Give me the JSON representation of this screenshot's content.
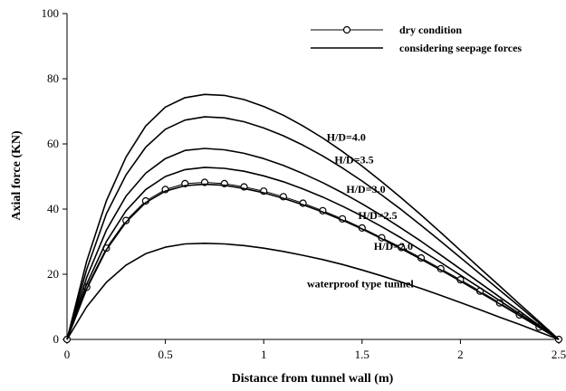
{
  "chart_data": {
    "type": "line",
    "xlabel": "Distance from tunnel wall (m)",
    "ylabel": "Axial force (KN)",
    "xlim": [
      0,
      2.5
    ],
    "ylim": [
      0,
      100
    ],
    "xticks": [
      0,
      0.5,
      1,
      1.5,
      2,
      2.5
    ],
    "xtick_labels": [
      "0",
      "0.5",
      "1",
      "1.5",
      "2",
      "2.5"
    ],
    "yticks": [
      0,
      20,
      40,
      60,
      80,
      100
    ],
    "ytick_labels": [
      "0",
      "20",
      "40",
      "60",
      "80",
      "100"
    ],
    "grid": false,
    "legend": {
      "position": "top-right",
      "entries": [
        {
          "label": "dry condition",
          "style": "line-with-circle-markers"
        },
        {
          "label": "considering seepage forces",
          "style": "line"
        }
      ]
    },
    "annotations": [
      {
        "text": "H/D=4.0",
        "x": 1.32,
        "y": 61
      },
      {
        "text": "H/D=3.5",
        "x": 1.36,
        "y": 54
      },
      {
        "text": "H/D=3.0",
        "x": 1.42,
        "y": 45
      },
      {
        "text": "H/D=2.5",
        "x": 1.48,
        "y": 37
      },
      {
        "text": "H/D=2.0",
        "x": 1.56,
        "y": 27.5
      },
      {
        "text": "waterproof type tunnel",
        "x": 1.22,
        "y": 16
      }
    ],
    "series": [
      {
        "label": "dry condition",
        "kind": "dry",
        "x": [
          0,
          0.1,
          0.2,
          0.3,
          0.4,
          0.5,
          0.6,
          0.7,
          0.8,
          0.9,
          1.0,
          1.1,
          1.2,
          1.3,
          1.4,
          1.5,
          1.6,
          1.7,
          1.8,
          1.9,
          2.0,
          2.1,
          2.2,
          2.3,
          2.4,
          2.5
        ],
        "y": [
          0,
          16,
          28,
          36.5,
          42.5,
          46,
          47.8,
          48.2,
          47.8,
          46.8,
          45.5,
          43.8,
          41.8,
          39.5,
          37,
          34.2,
          31.2,
          28.2,
          25,
          21.7,
          18.3,
          14.8,
          11.2,
          7.5,
          3.8,
          0
        ]
      },
      {
        "annotation": "H/D=2.0",
        "kind": "seepage",
        "x": [
          0,
          0.1,
          0.2,
          0.3,
          0.4,
          0.5,
          0.6,
          0.7,
          0.8,
          0.9,
          1.0,
          1.1,
          1.2,
          1.3,
          1.4,
          1.5,
          1.6,
          1.7,
          1.8,
          1.9,
          2.0,
          2.1,
          2.2,
          2.3,
          2.4,
          2.5
        ],
        "y": [
          0,
          15.5,
          27.5,
          36,
          42,
          45.5,
          47.2,
          47.6,
          47.3,
          46.3,
          45,
          43.3,
          41.3,
          39.1,
          36.6,
          33.9,
          30.9,
          27.8,
          24.6,
          21.3,
          17.9,
          14.4,
          10.9,
          7.3,
          3.7,
          0
        ]
      },
      {
        "annotation": "H/D=2.5",
        "kind": "seepage",
        "x": [
          0,
          0.1,
          0.2,
          0.3,
          0.4,
          0.5,
          0.6,
          0.7,
          0.8,
          0.9,
          1.0,
          1.1,
          1.2,
          1.3,
          1.4,
          1.5,
          1.6,
          1.7,
          1.8,
          1.9,
          2.0,
          2.1,
          2.2,
          2.3,
          2.4,
          2.5
        ],
        "y": [
          0,
          17,
          30,
          39.5,
          46,
          50,
          52.1,
          52.8,
          52.5,
          51.6,
          50.2,
          48.4,
          46.2,
          43.7,
          40.9,
          37.9,
          34.6,
          31.1,
          27.4,
          23.6,
          19.7,
          15.8,
          11.9,
          7.9,
          4.0,
          0
        ]
      },
      {
        "annotation": "H/D=3.0",
        "kind": "seepage",
        "x": [
          0,
          0.1,
          0.2,
          0.3,
          0.4,
          0.5,
          0.6,
          0.7,
          0.8,
          0.9,
          1.0,
          1.1,
          1.2,
          1.3,
          1.4,
          1.5,
          1.6,
          1.7,
          1.8,
          1.9,
          2.0,
          2.1,
          2.2,
          2.3,
          2.4,
          2.5
        ],
        "y": [
          0,
          19,
          33.5,
          44,
          51,
          55.5,
          58,
          58.6,
          58.2,
          57.1,
          55.5,
          53.4,
          50.9,
          48.1,
          45,
          41.6,
          38,
          34.1,
          30.1,
          25.9,
          21.6,
          17.3,
          13,
          8.7,
          4.3,
          0
        ]
      },
      {
        "annotation": "H/D=3.5",
        "kind": "seepage",
        "x": [
          0,
          0.1,
          0.2,
          0.3,
          0.4,
          0.5,
          0.6,
          0.7,
          0.8,
          0.9,
          1.0,
          1.1,
          1.2,
          1.3,
          1.4,
          1.5,
          1.6,
          1.7,
          1.8,
          1.9,
          2.0,
          2.1,
          2.2,
          2.3,
          2.4,
          2.5
        ],
        "y": [
          0,
          21.5,
          38.5,
          50.5,
          59,
          64.5,
          67.3,
          68.3,
          68,
          66.8,
          64.9,
          62.5,
          59.6,
          56.3,
          52.6,
          48.6,
          44.3,
          39.8,
          35,
          30.1,
          25.1,
          20.1,
          15.1,
          10.1,
          5.0,
          0
        ]
      },
      {
        "annotation": "H/D=4.0",
        "kind": "seepage",
        "x": [
          0,
          0.1,
          0.2,
          0.3,
          0.4,
          0.5,
          0.6,
          0.7,
          0.8,
          0.9,
          1.0,
          1.1,
          1.2,
          1.3,
          1.4,
          1.5,
          1.6,
          1.7,
          1.8,
          1.9,
          2.0,
          2.1,
          2.2,
          2.3,
          2.4,
          2.5
        ],
        "y": [
          0,
          24,
          42.5,
          56,
          65.5,
          71.3,
          74.2,
          75.2,
          74.9,
          73.6,
          71.5,
          68.8,
          65.5,
          61.8,
          57.7,
          53.2,
          48.4,
          43.4,
          38.2,
          32.8,
          27.3,
          21.8,
          16.4,
          10.9,
          5.5,
          0
        ]
      },
      {
        "annotation": "waterproof type tunnel",
        "kind": "seepage",
        "x": [
          0,
          0.1,
          0.2,
          0.3,
          0.4,
          0.5,
          0.6,
          0.7,
          0.8,
          0.9,
          1.0,
          1.1,
          1.2,
          1.3,
          1.4,
          1.5,
          1.6,
          1.7,
          1.8,
          1.9,
          2.0,
          2.1,
          2.2,
          2.3,
          2.4,
          2.5
        ],
        "y": [
          0,
          10,
          17.5,
          22.8,
          26.3,
          28.3,
          29.3,
          29.5,
          29.3,
          28.8,
          28,
          27,
          25.8,
          24.5,
          23,
          21.3,
          19.5,
          17.6,
          15.6,
          13.5,
          11.3,
          9.1,
          6.8,
          4.6,
          2.3,
          0
        ]
      }
    ]
  }
}
